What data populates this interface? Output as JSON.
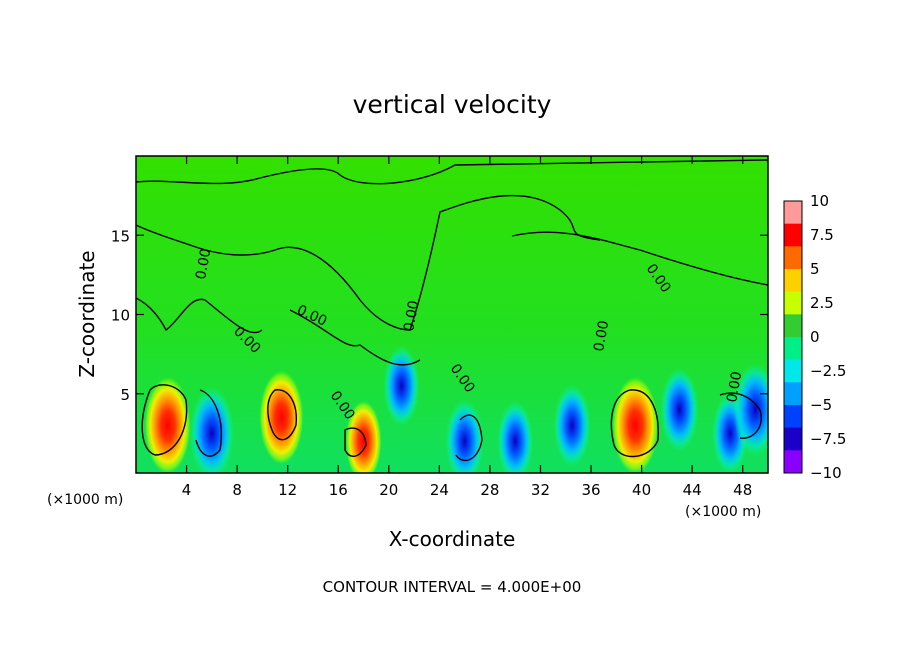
{
  "chart_data": {
    "type": "heatmap",
    "title": "vertical velocity",
    "xlabel": "X-coordinate",
    "ylabel": "Z-coordinate",
    "x_unit_left": "(×1000 m)",
    "x_unit_right": "(×1000 m)",
    "footer": "CONTOUR INTERVAL = 4.000E+00",
    "xlim": [
      0,
      50
    ],
    "ylim": [
      0,
      20
    ],
    "x_ticks": [
      "4",
      "8",
      "12",
      "16",
      "20",
      "24",
      "28",
      "32",
      "36",
      "40",
      "44",
      "48"
    ],
    "y_ticks": [
      "5",
      "10",
      "15"
    ],
    "colorbar": {
      "range": [
        -10,
        10
      ],
      "ticks": [
        "10",
        "7.5",
        "5",
        "2.5",
        "0",
        "−2.5",
        "−5",
        "−7.5",
        "−10"
      ],
      "colors": [
        "#ff9a9a",
        "#ff0000",
        "#ff6a00",
        "#ffd000",
        "#c8ff00",
        "#33cc33",
        "#00ee88",
        "#00e8e8",
        "#00a0ff",
        "#0040ff",
        "#1a00c8",
        "#8a00ff"
      ]
    },
    "contour_label": "0.00",
    "features": [
      {
        "x": 2.5,
        "z": 3.0,
        "w": 9.0
      },
      {
        "x": 6.0,
        "z": 2.5,
        "w": -8.0
      },
      {
        "x": 11.5,
        "z": 3.5,
        "w": 8.0
      },
      {
        "x": 18.0,
        "z": 2.0,
        "w": 4.0
      },
      {
        "x": 21.0,
        "z": 5.5,
        "w": -4.0
      },
      {
        "x": 26.0,
        "z": 2.0,
        "w": -5.0
      },
      {
        "x": 30.0,
        "z": 2.0,
        "w": -4.0
      },
      {
        "x": 34.5,
        "z": 3.0,
        "w": -4.5
      },
      {
        "x": 39.5,
        "z": 3.0,
        "w": 9.0
      },
      {
        "x": 43.0,
        "z": 4.0,
        "w": -5.0
      },
      {
        "x": 47.0,
        "z": 2.5,
        "w": -4.0
      },
      {
        "x": 49.0,
        "z": 4.0,
        "w": -8.0
      }
    ]
  }
}
